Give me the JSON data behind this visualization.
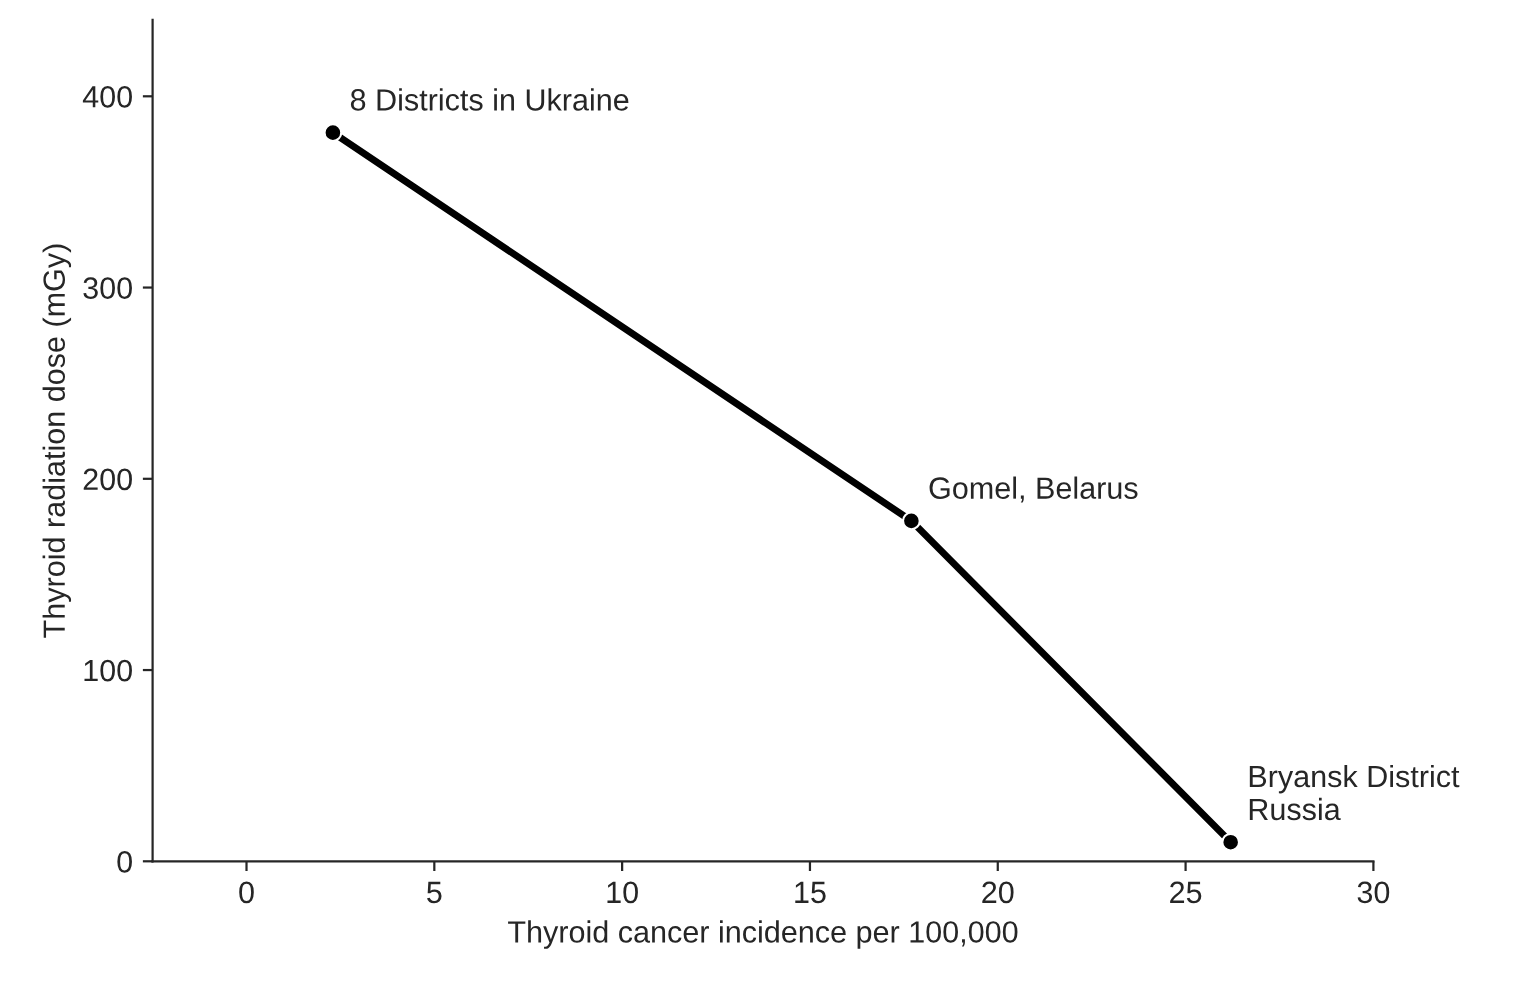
{
  "chart_data": {
    "type": "line",
    "xlabel": "Thyroid cancer incidence per 100,000",
    "ylabel": "Thyroid radiation dose (mGy)",
    "x": [
      2.3,
      17.7,
      26.2
    ],
    "series": [
      {
        "color": "#000000",
        "values": [
          381,
          178,
          10
        ]
      }
    ],
    "marker": "circle",
    "line_style": "solid",
    "grid": false,
    "legend": false,
    "xlim": [
      -2.5,
      30
    ],
    "ylim": [
      0,
      440
    ],
    "xticks": [
      0,
      5,
      10,
      15,
      20,
      25,
      30
    ],
    "yticks": [
      0,
      100,
      200,
      300,
      400
    ],
    "annotations": [
      {
        "text": "8 Districts in Ukraine",
        "x": 2.3,
        "y": 381
      },
      {
        "text": "Gomel, Belarus",
        "x": 17.7,
        "y": 178
      },
      {
        "text": "Bryansk District\nRussia",
        "x": 26.2,
        "y": 10
      }
    ]
  }
}
